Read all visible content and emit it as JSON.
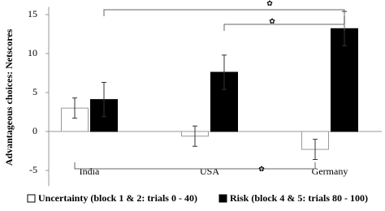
{
  "chart_data": {
    "type": "bar",
    "y_label": "Advantageous choices: Netscores",
    "categories": [
      "India",
      "USA",
      "Germany"
    ],
    "series": [
      {
        "name": "Uncertainty (block 1 & 2: trials 0 - 40)",
        "color": "#ffffff",
        "values": [
          3.0,
          -0.6,
          -2.3
        ],
        "errors": [
          1.3,
          1.3,
          1.3
        ]
      },
      {
        "name": "Risk (block 4 & 5: trials 80 - 100)",
        "color": "#000000",
        "values": [
          4.1,
          7.6,
          13.2
        ],
        "errors": [
          2.2,
          2.2,
          2.2
        ]
      }
    ],
    "ylim": [
      -7,
      16
    ],
    "yticks": [
      -5,
      0,
      5,
      10,
      15
    ],
    "annotations": [
      "✿",
      "✿",
      "✿"
    ],
    "grid": false
  }
}
